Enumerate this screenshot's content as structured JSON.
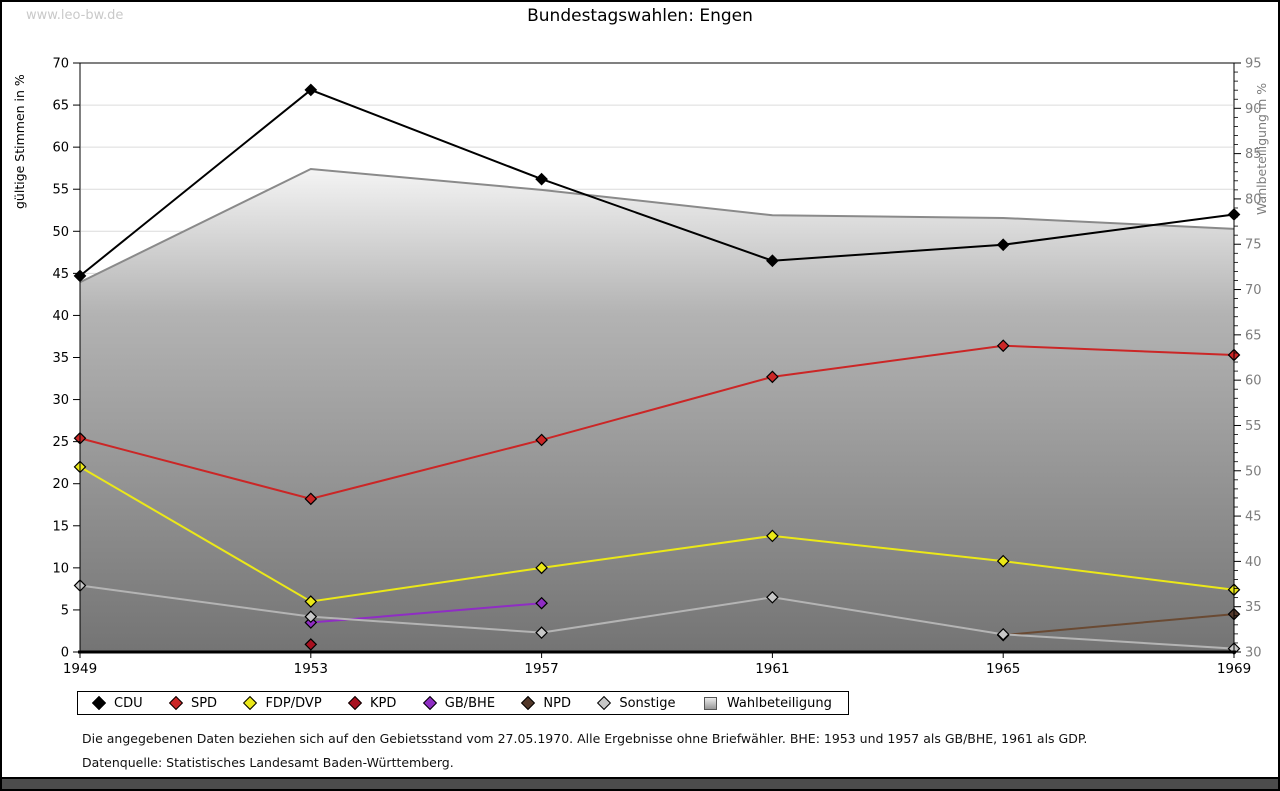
{
  "page": {
    "watermark": "www.leo-bw.de",
    "title": "Bundestagswahlen: Engen",
    "footnote": "Die angegebenen Daten beziehen sich auf den Gebietsstand vom 27.05.1970. Alle Ergebnisse ohne Briefwähler. BHE: 1953 und 1957 als GB/BHE, 1961 als GDP.",
    "source": "Datenquelle: Statistisches Landesamt Baden-Württemberg."
  },
  "chart_data": {
    "type": "line",
    "title": "Bundestagswahlen: Engen",
    "categories": [
      "1949",
      "1953",
      "1957",
      "1961",
      "1965",
      "1969"
    ],
    "left_axis": {
      "label": "gültige Stimmen in %",
      "min": 0,
      "max": 70,
      "tick_step": 5,
      "ticks": [
        0,
        5,
        10,
        15,
        20,
        25,
        30,
        35,
        40,
        45,
        50,
        55,
        60,
        65,
        70
      ]
    },
    "right_axis": {
      "label": "Wahlbeteiligung in %",
      "min": 30,
      "max": 95,
      "tick_step": 5,
      "ticks": [
        30,
        35,
        40,
        45,
        50,
        55,
        60,
        65,
        70,
        75,
        80,
        85,
        90,
        95
      ]
    },
    "grid": true,
    "legend_position": "bottom",
    "series": [
      {
        "name": "CDU",
        "axis": "left",
        "color": "#000000",
        "values": [
          44.7,
          66.8,
          56.2,
          46.5,
          48.4,
          52.0
        ]
      },
      {
        "name": "SPD",
        "axis": "left",
        "color": "#cb2626",
        "values": [
          25.4,
          18.2,
          25.2,
          32.7,
          36.4,
          35.3
        ]
      },
      {
        "name": "FDP/DVP",
        "axis": "left",
        "color": "#ebe818",
        "values": [
          22.0,
          6.0,
          10.0,
          13.8,
          10.8,
          7.4
        ]
      },
      {
        "name": "KPD",
        "axis": "left",
        "color": "#a8101f",
        "values": [
          null,
          0.9,
          null,
          null,
          null,
          null
        ]
      },
      {
        "name": "GB/BHE",
        "axis": "left",
        "color": "#8f2dc4",
        "values": [
          null,
          3.5,
          5.8,
          null,
          null,
          null
        ]
      },
      {
        "name": "NPD",
        "axis": "left",
        "color": "#53382a",
        "line_color": "#6a4a33",
        "values": [
          null,
          null,
          null,
          null,
          2.0,
          4.5
        ]
      },
      {
        "name": "Sonstige",
        "axis": "left",
        "color": "#c8c8c8",
        "line_color": "#b4b4b4",
        "values": [
          7.9,
          4.2,
          2.3,
          6.5,
          2.1,
          0.4
        ]
      },
      {
        "name": "Wahlbeteiligung",
        "axis": "right",
        "color": "#8a8a8a",
        "type": "area",
        "values": [
          70.8,
          83.3,
          81.0,
          78.2,
          77.9,
          76.7
        ]
      }
    ],
    "area_gradient": [
      "#f4f4f4",
      "#b3b3b3",
      "#747474"
    ],
    "grid_color": "#dcdcdc"
  }
}
